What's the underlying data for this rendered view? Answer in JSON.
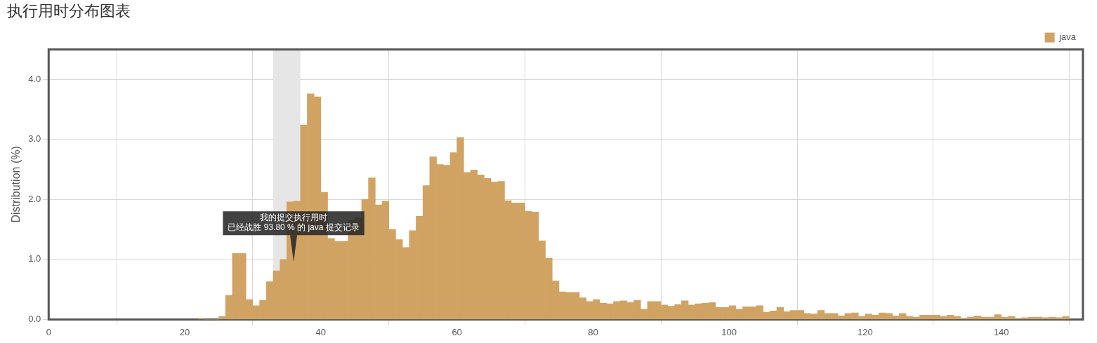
{
  "chart_data": {
    "type": "histogram",
    "title": "执行用时分布图表",
    "ylabel": "Distribution (%)",
    "legend": "top right",
    "grid": true,
    "xlim": [
      0,
      152
    ],
    "xticks": [
      0,
      20,
      40,
      60,
      80,
      100,
      120,
      140
    ],
    "ylim": [
      0,
      4.5
    ],
    "yticks": [
      {
        "value": 0,
        "label": "0.0"
      },
      {
        "value": 1,
        "label": "1.0"
      },
      {
        "value": 2,
        "label": "2.0"
      },
      {
        "value": 3,
        "label": "3.0"
      },
      {
        "value": 4,
        "label": "4.0"
      }
    ],
    "bins": [
      22,
      23,
      24,
      25,
      26,
      27,
      28,
      29,
      30,
      31,
      32,
      33,
      34,
      35,
      36,
      37,
      38,
      39,
      40,
      41,
      42,
      43,
      44,
      45,
      46,
      47,
      48,
      49,
      50,
      51,
      52,
      53,
      54,
      55,
      56,
      57,
      58,
      59,
      60,
      61,
      62,
      63,
      64,
      65,
      66,
      67,
      68,
      69,
      70,
      71,
      72,
      73,
      74,
      75,
      76,
      77,
      78,
      79,
      80,
      81,
      82,
      83,
      84,
      85,
      86,
      87,
      88,
      89,
      90,
      91,
      92,
      93,
      94,
      95,
      96,
      97,
      98,
      99,
      100,
      101,
      102,
      103,
      104,
      105,
      106,
      107,
      108,
      109,
      110,
      111,
      112,
      113,
      114,
      115,
      116,
      117,
      118,
      119,
      120,
      121,
      122,
      123,
      124,
      125,
      126,
      127,
      128,
      129,
      130,
      131,
      132,
      133,
      134,
      135,
      136,
      137,
      138,
      139,
      140,
      141,
      142,
      143,
      144,
      145,
      146,
      147,
      148,
      149,
      150
    ],
    "series": [
      {
        "name": "java",
        "color": "#d1a363",
        "values": [
          0.02,
          0,
          0,
          0.05,
          0.4,
          1.1,
          1.1,
          0.33,
          0.23,
          0.32,
          0.63,
          0.81,
          1.0,
          1.96,
          1.97,
          3.24,
          3.76,
          3.71,
          2.12,
          1.35,
          1.3,
          1.3,
          1.65,
          1.7,
          2.0,
          2.36,
          1.91,
          1.97,
          1.5,
          1.33,
          1.2,
          1.48,
          1.72,
          2.23,
          2.71,
          2.58,
          2.57,
          2.78,
          3.03,
          2.45,
          2.49,
          2.41,
          2.35,
          2.29,
          2.3,
          1.98,
          1.94,
          1.94,
          1.8,
          1.79,
          1.31,
          1.02,
          0.64,
          0.46,
          0.45,
          0.45,
          0.36,
          0.3,
          0.33,
          0.27,
          0.26,
          0.3,
          0.31,
          0.28,
          0.32,
          0.17,
          0.3,
          0.3,
          0.24,
          0.22,
          0.25,
          0.31,
          0.24,
          0.26,
          0.27,
          0.28,
          0.2,
          0.2,
          0.23,
          0.17,
          0.21,
          0.21,
          0.23,
          0.12,
          0.14,
          0.2,
          0.13,
          0.15,
          0.15,
          0.1,
          0.09,
          0.15,
          0.1,
          0.1,
          0.06,
          0.1,
          0.11,
          0.05,
          0.09,
          0.07,
          0.11,
          0.1,
          0.06,
          0.1,
          0.05,
          0.04,
          0.07,
          0.07,
          0.07,
          0.05,
          0.07,
          0.05,
          0.02,
          0.04,
          0.06,
          0.04,
          0.04,
          0.08,
          0.04,
          0.05,
          0.02,
          0.03,
          0.04,
          0.04,
          0.03,
          0.04,
          0.03,
          0.05
        ]
      }
    ],
    "bands": [
      {
        "axis": "x",
        "from": 33,
        "to": 37,
        "color": "#e6e6e6"
      }
    ],
    "annotations": [
      "我的提交执行用时",
      {
        "text": "已经战胜 93.80 % 的 java 提交记录",
        "x": 36,
        "y": 0.96
      }
    ]
  }
}
